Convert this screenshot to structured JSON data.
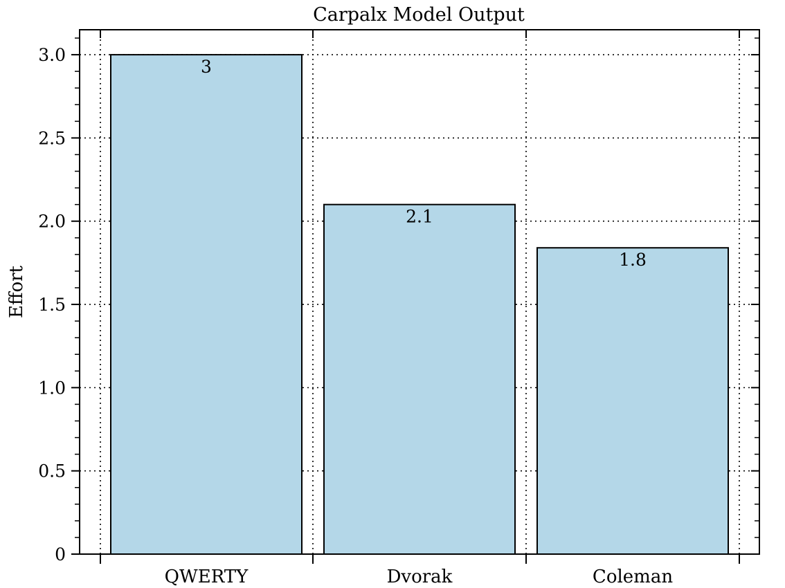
{
  "chart_data": {
    "type": "bar",
    "title": "Carpalx Model Output",
    "xlabel": "",
    "ylabel": "Effort",
    "categories": [
      "QWERTY",
      "Dvorak",
      "Coleman"
    ],
    "values": [
      3.0,
      2.1,
      1.84
    ],
    "data_labels": [
      "3",
      "2.1",
      "1.8"
    ],
    "ylim": [
      0,
      3.15
    ],
    "yticks": [
      0,
      0.5,
      1.0,
      1.5,
      2.0,
      2.5,
      3.0
    ],
    "ytick_labels": [
      "0",
      "0.5",
      "1.0",
      "1.5",
      "2.0",
      "2.5",
      "3.0"
    ],
    "grid": true,
    "grid_style": "dotted",
    "legend": "none",
    "colors": {
      "bar_fill": "#b4d7e8",
      "bar_edge": "#000000",
      "axis": "#000000",
      "grid": "#000000"
    }
  }
}
